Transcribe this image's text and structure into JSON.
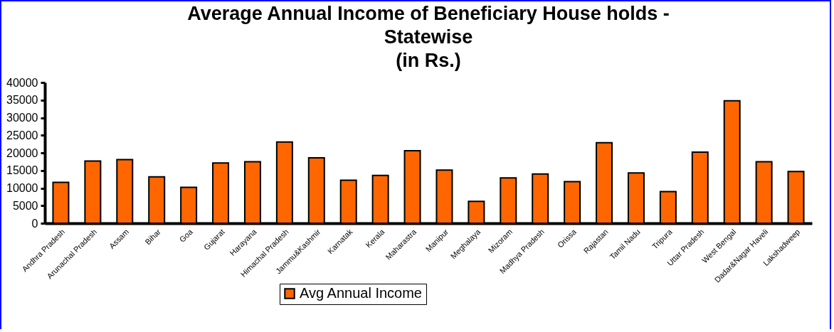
{
  "chart_data": {
    "type": "bar",
    "title": "Average Annual Income of Beneficiary House holds  -\nStatewise\n(in Rs.)",
    "categories": [
      "Andhra Pradesh",
      "Arunachal Pradesh",
      "Assam",
      "Bihar",
      "Goa",
      "Gujarat",
      "Harayana",
      "Himachal Pradesh",
      "Jammu&Kashmir",
      "Karnatak",
      "Kerala",
      "Maharastra",
      "Manipur",
      "Meghalaya",
      "Mizoram",
      "Madhya Pradesh",
      "Orissa",
      "Rajastan",
      "Tamil Nadu",
      "Tripura",
      "Uttar Pradesh",
      "West Bengal",
      "Dadar&Nagar Haveli",
      "Lakshadweep"
    ],
    "series": [
      {
        "name": "Avg Annual Income",
        "color": "#ff6600",
        "values": [
          11600,
          17700,
          18100,
          13200,
          10200,
          17100,
          17500,
          23100,
          18600,
          12200,
          13600,
          20600,
          15100,
          6200,
          12900,
          14000,
          11800,
          22900,
          14300,
          9000,
          20200,
          34800,
          17500,
          14700
        ]
      }
    ],
    "ylim": [
      0,
      40000
    ],
    "yticks": [
      0,
      5000,
      10000,
      15000,
      20000,
      25000,
      30000,
      35000,
      40000
    ],
    "grid": false,
    "legend": "bottom"
  }
}
